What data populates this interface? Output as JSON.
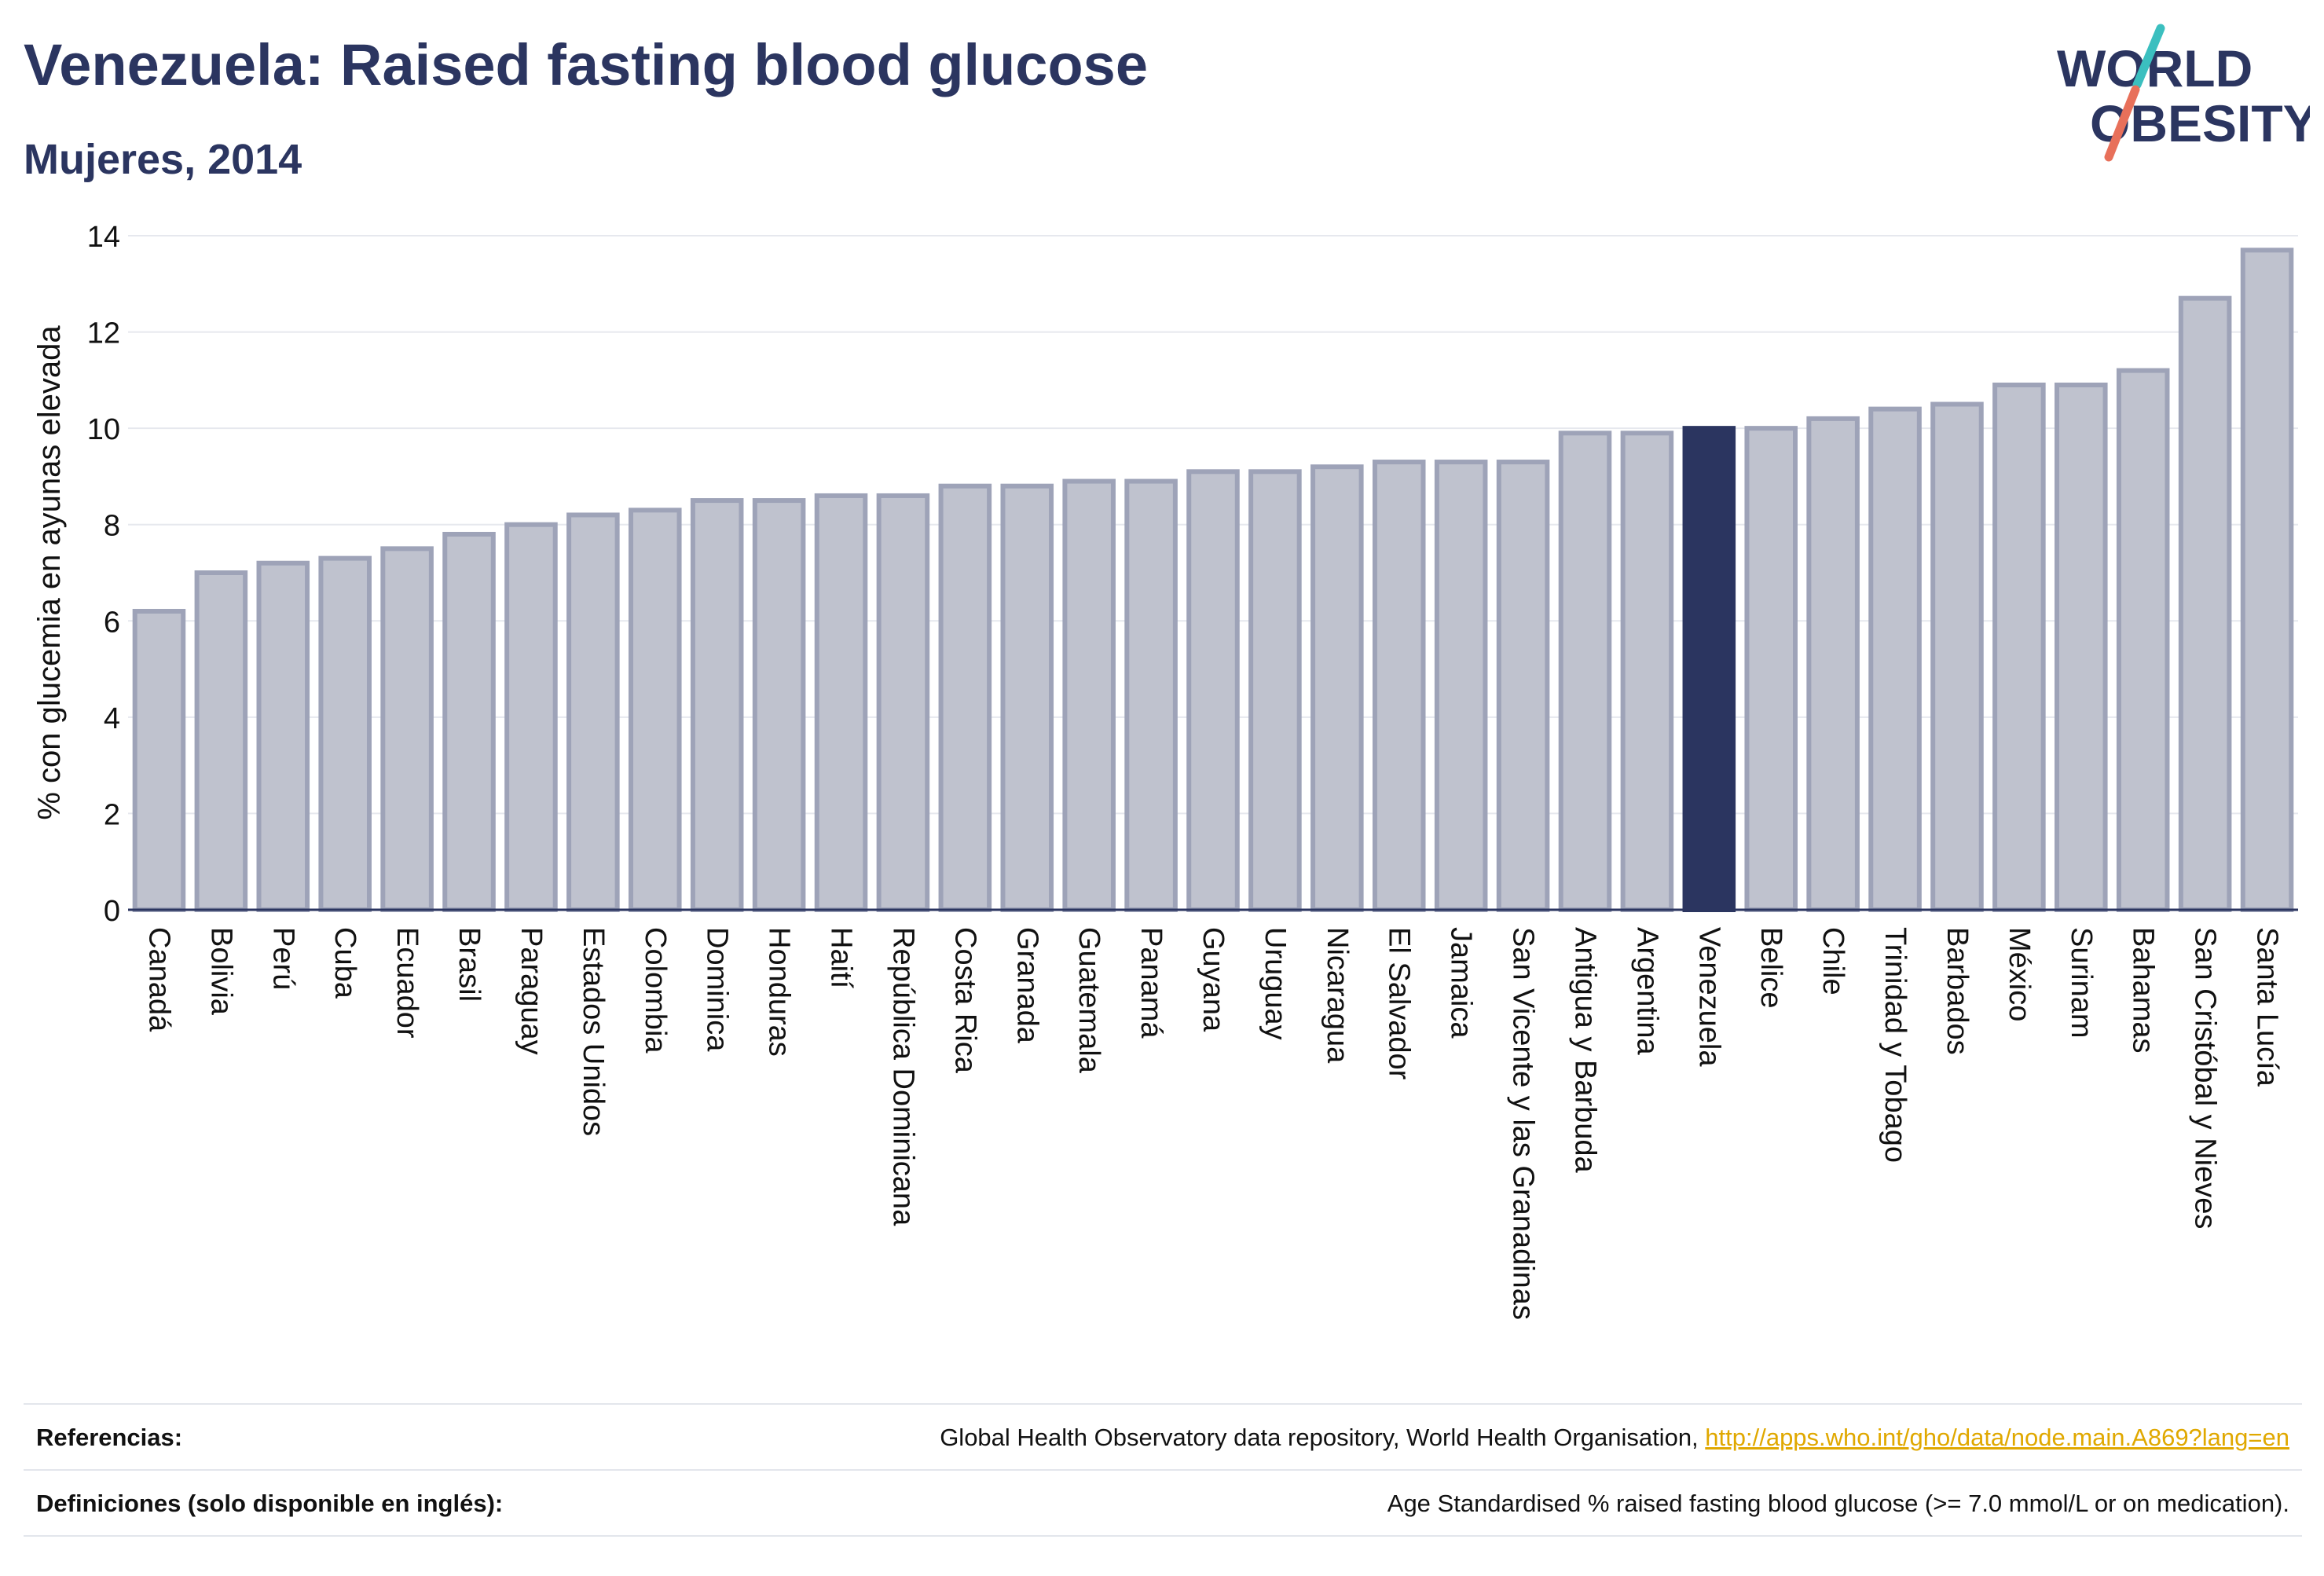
{
  "title": "Venezuela: Raised fasting blood glucose",
  "subtitle": "Mujeres, 2014",
  "logo": {
    "line1": "WORLD",
    "line2": "OBESITY"
  },
  "colors": {
    "bar": "#bfc2ce",
    "bar_border": "#9ea3b8",
    "highlight": "#2b3560",
    "title": "#2b3560",
    "link": "#e0a800",
    "logo_slash_teal": "#3bbfbf",
    "logo_slash_red": "#e8705a"
  },
  "chart_data": {
    "type": "bar",
    "categories": [
      "Canadá",
      "Bolivia",
      "Perú",
      "Cuba",
      "Ecuador",
      "Brasil",
      "Paraguay",
      "Estados Unidos",
      "Colombia",
      "Dominica",
      "Honduras",
      "Haití",
      "República Dominicana",
      "Costa Rica",
      "Granada",
      "Guatemala",
      "Panamá",
      "Guyana",
      "Uruguay",
      "Nicaragua",
      "El Salvador",
      "Jamaica",
      "San Vicente y las Granadinas",
      "Antigua y Barbuda",
      "Argentina",
      "Venezuela",
      "Belice",
      "Chile",
      "Trinidad y Tobago",
      "Barbados",
      "México",
      "Surinam",
      "Bahamas",
      "San Cristóbal y Nieves",
      "Santa Lucía"
    ],
    "values": [
      6.2,
      7.0,
      7.2,
      7.3,
      7.5,
      7.8,
      8.0,
      8.2,
      8.3,
      8.5,
      8.5,
      8.6,
      8.6,
      8.8,
      8.8,
      8.9,
      8.9,
      9.1,
      9.1,
      9.2,
      9.3,
      9.3,
      9.3,
      9.9,
      9.9,
      10.0,
      10.0,
      10.2,
      10.4,
      10.5,
      10.9,
      10.9,
      11.2,
      12.7,
      13.7
    ],
    "highlight": "Venezuela",
    "ylabel": "% con glucemia en ayunas elevada",
    "xlabel": "",
    "ylim": [
      0,
      14
    ],
    "yticks": [
      0,
      2,
      4,
      6,
      8,
      10,
      12,
      14
    ],
    "grid": true,
    "legend": "none"
  },
  "footer": {
    "references_label": "Referencias:",
    "references_text": "Global Health Observatory data repository, World Health Organisation, ",
    "references_link": "http://apps.who.int/gho/data/node.main.A869?lang=en",
    "definitions_label": "Definiciones (solo disponible en inglés):",
    "definitions_text": "Age Standardised % raised fasting blood glucose (>= 7.0 mmol/L or on medication)."
  }
}
